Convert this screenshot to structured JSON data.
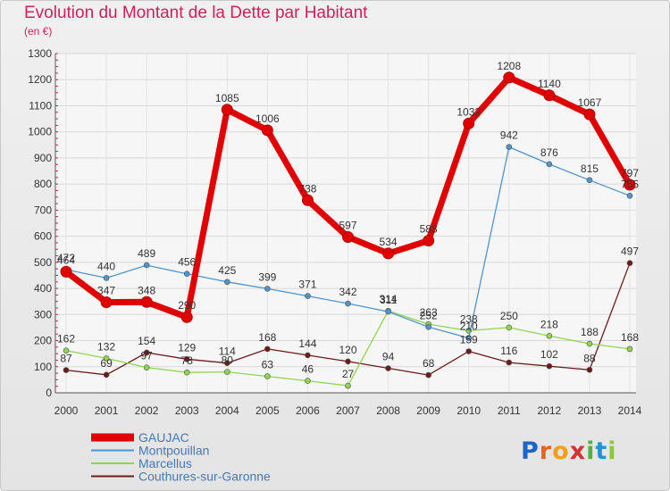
{
  "chart_data": {
    "type": "line",
    "title": "Evolution du Montant de la Dette par Habitant",
    "subtitle": "(en €)",
    "xlabel": "",
    "ylabel": "",
    "x": [
      "2000",
      "2001",
      "2002",
      "2003",
      "2004",
      "2005",
      "2006",
      "2007",
      "2008",
      "2009",
      "2010",
      "2011",
      "2012",
      "2013",
      "2014"
    ],
    "ylim": [
      0,
      1300
    ],
    "yticks": [
      0,
      100,
      200,
      300,
      400,
      500,
      600,
      700,
      800,
      900,
      1000,
      1100,
      1200,
      1300
    ],
    "grid": true,
    "legend_position": "bottom-left",
    "series": [
      {
        "name": "GAUJAC",
        "color": "#e00000",
        "values": [
          464,
          347,
          348,
          290,
          1085,
          1006,
          738,
          597,
          534,
          583,
          1032,
          1208,
          1140,
          1067,
          797
        ]
      },
      {
        "name": "Montpouillan",
        "color": "#4f94cd",
        "values": [
          472,
          440,
          489,
          456,
          425,
          399,
          371,
          342,
          311,
          252,
          210,
          942,
          876,
          815,
          755
        ]
      },
      {
        "name": "Marcellus",
        "color": "#8ed64f",
        "values": [
          162,
          132,
          97,
          78,
          80,
          63,
          46,
          27,
          314,
          263,
          238,
          250,
          218,
          188,
          168
        ]
      },
      {
        "name": "Couthures-sur-Garonne",
        "color": "#6e1a1a",
        "values": [
          87,
          69,
          154,
          129,
          114,
          168,
          144,
          120,
          94,
          68,
          159,
          116,
          102,
          88,
          497
        ]
      }
    ]
  },
  "logo": {
    "letters": [
      "P",
      "r",
      "o",
      "x",
      "i",
      "t",
      "i"
    ],
    "colors": [
      "#1e64c8",
      "#e8641e",
      "#f0a01e",
      "#d23232",
      "#50b43c",
      "#1e96d2",
      "#8cc83c"
    ]
  }
}
